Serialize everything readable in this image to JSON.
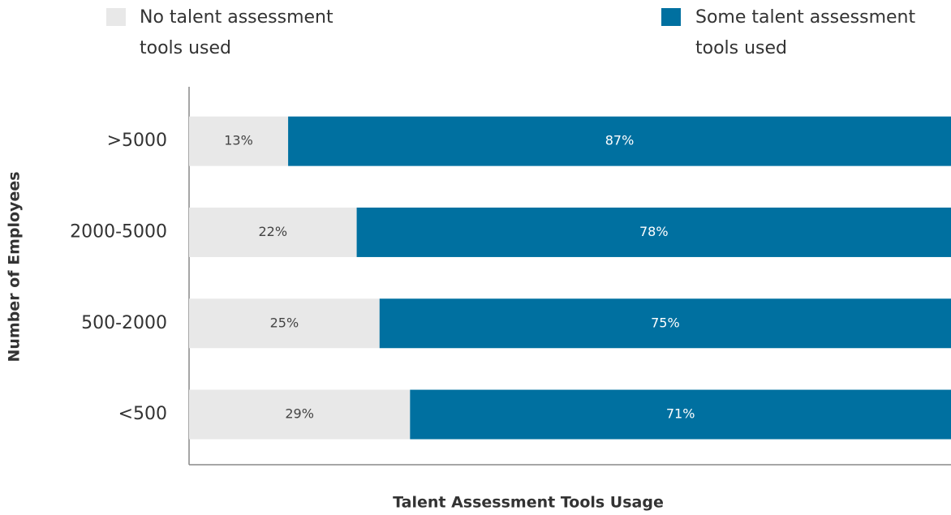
{
  "chart_data": {
    "type": "stacked-barh",
    "categories": [
      ">5000",
      "2000-5000",
      "500-2000",
      "<500"
    ],
    "series": [
      {
        "name": "No talent assessment tools used",
        "color": "#e8e8e8",
        "values": [
          13,
          22,
          25,
          29
        ],
        "value_labels": [
          "13%",
          "22%",
          "25%",
          "29%"
        ]
      },
      {
        "name": "Some talent assessment tools used",
        "color": "#0070a0",
        "values": [
          87,
          78,
          75,
          71
        ],
        "value_labels": [
          "87%",
          "78%",
          "75%",
          "71%"
        ]
      }
    ],
    "xlim": [
      0,
      100
    ],
    "x_label": "Talent Assessment Tools Usage",
    "y_label": "Number of Employees"
  }
}
